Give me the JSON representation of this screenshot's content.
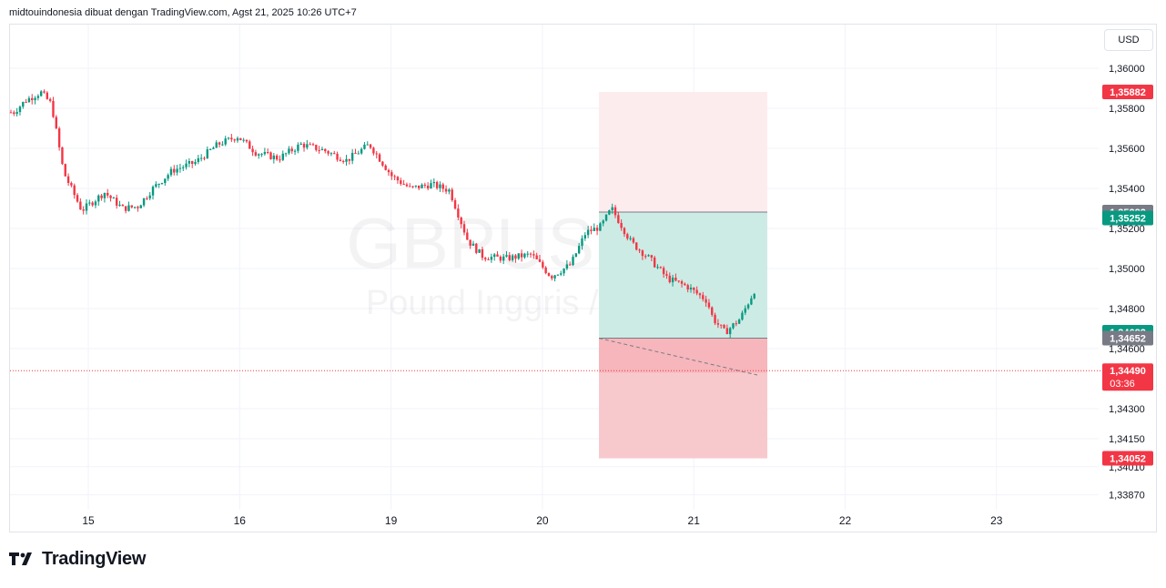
{
  "header": {
    "attribution": "midtouindonesia dibuat dengan TradingView.com, Agst 21, 2025 10:26 UTC+7"
  },
  "currency_button": "USD",
  "brand": {
    "name": "TradingView",
    "icon": "tradingview-logo-icon"
  },
  "watermark": {
    "symbol": "GBPUSD, 30",
    "description": "Pound Inggris / Dolar AS"
  },
  "colors": {
    "up": "#089981",
    "down": "#f23645",
    "grid": "#f0f3fa",
    "stop_zone": "#f7c9cd",
    "target_zone": "#cdebe5",
    "stop_tag": "#f23645",
    "target_tag": "#089981",
    "entry_tag": "#787b86"
  },
  "chart_data": {
    "type": "candlestick",
    "symbol": "GBPUSD",
    "interval": "30",
    "x_ticks": [
      "15",
      "16",
      "19",
      "20",
      "21",
      "22",
      "23"
    ],
    "y_ticks": [
      "1,36000",
      "1,35800",
      "1,35600",
      "1,35400",
      "1,35200",
      "1,35000",
      "1,34800",
      "1,34600",
      "1,34300",
      "1,34150",
      "1,34010",
      "1,33870"
    ],
    "ylim": [
      1.338,
      1.3625
    ],
    "close_path": [
      {
        "d": 0.0,
        "p": 1.3578
      },
      {
        "d": 0.08,
        "p": 1.3584
      },
      {
        "d": 0.18,
        "p": 1.3588
      },
      {
        "d": 0.25,
        "p": 1.3582
      },
      {
        "d": 0.33,
        "p": 1.3548
      },
      {
        "d": 0.45,
        "p": 1.3529
      },
      {
        "d": 0.6,
        "p": 1.3538
      },
      {
        "d": 0.72,
        "p": 1.353
      },
      {
        "d": 0.82,
        "p": 1.3531
      },
      {
        "d": 0.92,
        "p": 1.354
      },
      {
        "d": 1.05,
        "p": 1.3549
      },
      {
        "d": 1.2,
        "p": 1.3553
      },
      {
        "d": 1.35,
        "p": 1.3562
      },
      {
        "d": 1.48,
        "p": 1.3566
      },
      {
        "d": 1.6,
        "p": 1.3558
      },
      {
        "d": 1.75,
        "p": 1.3555
      },
      {
        "d": 1.9,
        "p": 1.3562
      },
      {
        "d": 2.05,
        "p": 1.3559
      },
      {
        "d": 2.2,
        "p": 1.3554
      },
      {
        "d": 2.35,
        "p": 1.3562
      },
      {
        "d": 2.5,
        "p": 1.3546
      },
      {
        "d": 2.62,
        "p": 1.354
      },
      {
        "d": 2.76,
        "p": 1.3542
      },
      {
        "d": 2.88,
        "p": 1.3539
      },
      {
        "d": 3.0,
        "p": 1.3514
      },
      {
        "d": 3.1,
        "p": 1.3506
      },
      {
        "d": 3.25,
        "p": 1.3505
      },
      {
        "d": 3.42,
        "p": 1.3507
      },
      {
        "d": 3.55,
        "p": 1.3496
      },
      {
        "d": 3.68,
        "p": 1.3502
      },
      {
        "d": 3.78,
        "p": 1.3518
      },
      {
        "d": 3.88,
        "p": 1.3521
      },
      {
        "d": 3.95,
        "p": 1.353
      },
      {
        "d": 4.08,
        "p": 1.3513
      },
      {
        "d": 4.2,
        "p": 1.3505
      },
      {
        "d": 4.32,
        "p": 1.3495
      },
      {
        "d": 4.45,
        "p": 1.3491
      },
      {
        "d": 4.58,
        "p": 1.3484
      },
      {
        "d": 4.62,
        "p": 1.3475
      },
      {
        "d": 4.7,
        "p": 1.3468
      },
      {
        "d": 4.8,
        "p": 1.3475
      },
      {
        "d": 4.9,
        "p": 1.349
      },
      {
        "d": 5.0,
        "p": 1.3505
      },
      {
        "d": 5.1,
        "p": 1.3502
      },
      {
        "d": 5.22,
        "p": 1.349
      },
      {
        "d": 5.32,
        "p": 1.3484
      },
      {
        "d": 5.4,
        "p": 1.3472
      },
      {
        "d": 5.48,
        "p": 1.346
      },
      {
        "d": 5.56,
        "p": 1.3455
      },
      {
        "d": 5.62,
        "p": 1.3466
      },
      {
        "d": 5.7,
        "p": 1.3456
      },
      {
        "d": 5.8,
        "p": 1.3458
      },
      {
        "d": 5.9,
        "p": 1.3459
      },
      {
        "d": 5.98,
        "p": 1.3463
      },
      {
        "d": 6.06,
        "p": 1.3455
      },
      {
        "d": 6.12,
        "p": 1.3449
      }
    ],
    "position": {
      "type": "long",
      "target": "1,35252",
      "entry": "1,34652",
      "stop": "1,34052",
      "top_extent": "1,35882",
      "upper_line": "1,35282",
      "entry_label_2": "1,34682"
    },
    "last_price": {
      "value": "1,34490",
      "countdown": "03:36"
    },
    "price_tags": [
      {
        "label": "1,35882",
        "kind": "stop_tag"
      },
      {
        "label": "1,35282",
        "kind": "entry_tag"
      },
      {
        "label": "1,35252",
        "kind": "target_tag"
      },
      {
        "label": "1,34682",
        "kind": "target_tag"
      },
      {
        "label": "1,34652",
        "kind": "entry_tag"
      },
      {
        "label": "1,34052",
        "kind": "stop_tag"
      }
    ]
  }
}
